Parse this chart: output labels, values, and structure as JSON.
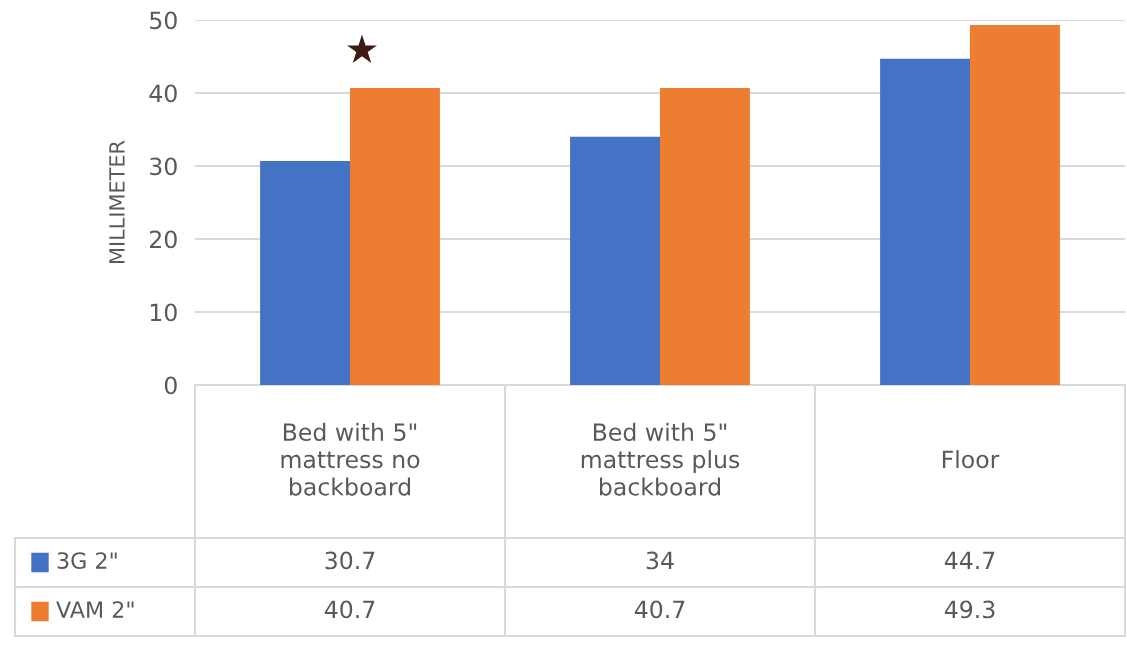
{
  "chart_data": {
    "type": "bar",
    "ylabel": "MILLIMETER",
    "categories": [
      "Bed with 5\" mattress no backboard",
      "Bed with 5\" mattress plus backboard",
      "Floor"
    ],
    "series": [
      {
        "name": "3G 2\"",
        "color": "#4472c4",
        "values": [
          30.7,
          34,
          44.7
        ]
      },
      {
        "name": "VAM 2\"",
        "color": "#ed7d31",
        "values": [
          40.7,
          40.7,
          49.3
        ]
      }
    ],
    "ylim": [
      0,
      50
    ],
    "yticks": [
      0,
      10,
      20,
      30,
      40,
      50
    ],
    "grid": "y",
    "legend": "bottom",
    "data_labels": true,
    "annotations": [
      "★"
    ]
  }
}
